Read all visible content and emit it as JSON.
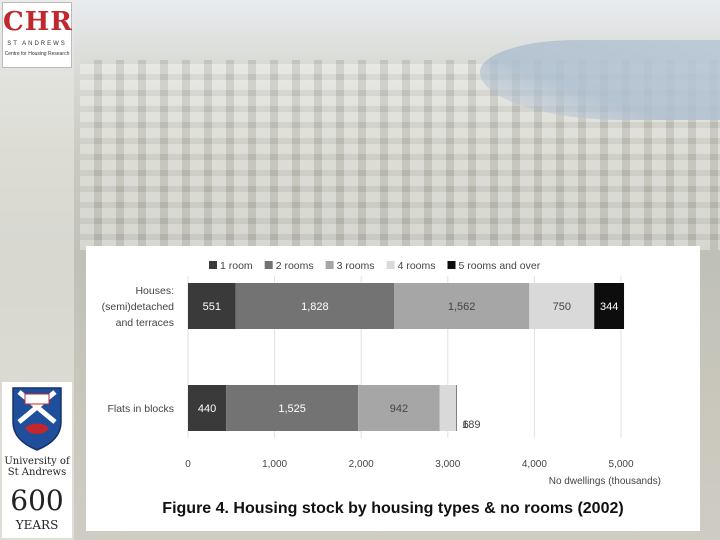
{
  "logo": {
    "acronym": "CHR",
    "line1": "ST ANDREWS",
    "line2": "Centre for Housing Research"
  },
  "university": {
    "name_line1": "University of",
    "name_line2": "St Andrews",
    "anniversary": "600",
    "anniversary_label": "YEARS"
  },
  "caption": "Figure 4. Housing stock by housing types & no rooms (2002)",
  "chart_data": {
    "type": "bar",
    "orientation": "horizontal",
    "stacked": true,
    "categories": [
      "Houses: (semi)detached and terraces",
      "Flats in blocks"
    ],
    "category_label_lines": [
      [
        "Houses:",
        "(semi)detached",
        "and terraces"
      ],
      [
        "Flats in blocks"
      ]
    ],
    "series": [
      {
        "name": "1 room",
        "values": [
          551,
          440
        ],
        "labels": [
          "551",
          "440"
        ],
        "color": "#3a3a3a"
      },
      {
        "name": "2 rooms",
        "values": [
          1828,
          1525
        ],
        "labels": [
          "1,828",
          "1,525"
        ],
        "color": "#737373"
      },
      {
        "name": "3 rooms",
        "values": [
          1562,
          942
        ],
        "labels": [
          "1,562",
          "942"
        ],
        "color": "#a6a6a6"
      },
      {
        "name": "4 rooms",
        "values": [
          750,
          189
        ],
        "labels": [
          "750",
          "189"
        ],
        "color": "#d9d9d9"
      },
      {
        "name": "5 rooms and over",
        "values": [
          344,
          6
        ],
        "labels": [
          "344",
          "6"
        ],
        "color": "#0d0d0d"
      }
    ],
    "x_ticks": [
      "0",
      "1,000",
      "2,000",
      "3,000",
      "4,000",
      "5,000"
    ],
    "xlim": [
      0,
      5000
    ],
    "xlabel": "No dwellings (thousands)",
    "legend_position": "top",
    "grid": true
  }
}
